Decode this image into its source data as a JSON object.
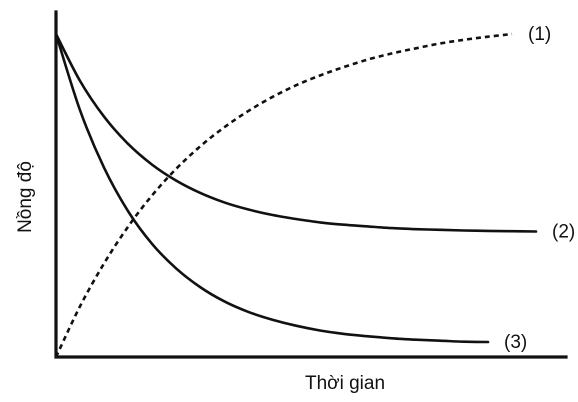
{
  "chart_data": {
    "type": "line",
    "title": "",
    "xlabel": "Thời gian",
    "ylabel": "Nồng độ",
    "xlim": [
      0,
      10
    ],
    "ylim": [
      0,
      1
    ],
    "grid": false,
    "legend": "none",
    "series": [
      {
        "name": "(1)",
        "style": "dashed",
        "x": [
          0,
          0.5,
          1,
          1.5,
          2,
          2.5,
          3,
          3.5,
          4,
          4.5,
          5,
          5.5,
          6,
          6.5,
          7,
          7.5,
          8,
          8.5,
          9,
          9.5
        ],
        "y": [
          0,
          0.149,
          0.275,
          0.383,
          0.475,
          0.553,
          0.619,
          0.675,
          0.723,
          0.764,
          0.799,
          0.828,
          0.853,
          0.875,
          0.893,
          0.908,
          0.922,
          0.933,
          0.942,
          0.95
        ]
      },
      {
        "name": "(2)",
        "style": "solid",
        "x": [
          0,
          0.5,
          1,
          1.5,
          2,
          2.5,
          3,
          3.5,
          4,
          4.5,
          5,
          5.5,
          6,
          6.5,
          7,
          7.5,
          8,
          8.5,
          9,
          9.5,
          10
        ],
        "y": [
          0.95,
          0.812,
          0.707,
          0.627,
          0.566,
          0.519,
          0.483,
          0.455,
          0.434,
          0.418,
          0.406,
          0.396,
          0.389,
          0.384,
          0.379,
          0.376,
          0.374,
          0.372,
          0.371,
          0.37,
          0.369
        ]
      },
      {
        "name": "(3)",
        "style": "solid",
        "x": [
          0,
          0.5,
          1,
          1.5,
          2,
          2.5,
          3,
          3.5,
          4,
          4.5,
          5,
          5.5,
          6,
          6.5,
          7,
          7.5,
          8,
          8.5,
          9
        ],
        "y": [
          0.95,
          0.726,
          0.557,
          0.429,
          0.333,
          0.261,
          0.206,
          0.164,
          0.133,
          0.11,
          0.092,
          0.078,
          0.068,
          0.061,
          0.055,
          0.051,
          0.048,
          0.045,
          0.044
        ]
      }
    ]
  }
}
